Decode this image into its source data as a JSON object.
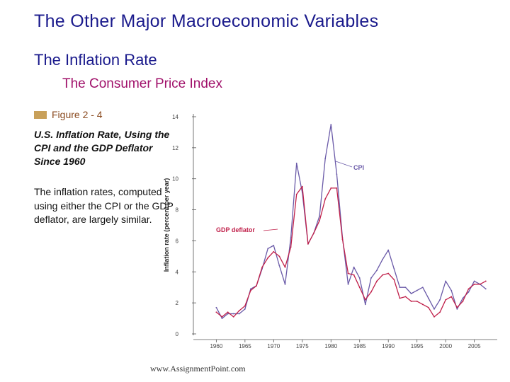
{
  "slide": {
    "title": "The Other Major Macroeconomic Variables",
    "subtitle": "The Inflation Rate",
    "subsubtitle": "The Consumer Price Index",
    "figure_label": "Figure 2 - 4",
    "caption": "U.S. Inflation Rate, Using the CPI and the GDP Deflator Since 1960",
    "description": "The inflation rates, computed using either the CPI or the GDP deflator, are largely similar.",
    "footer": "www.AssignmentPoint.com"
  },
  "colors": {
    "title": "#1a1a8c",
    "subsubtitle": "#a0106a",
    "cpi": "#6a5aa8",
    "gdp_deflator": "#c0204a",
    "figure_swatch": "#c8a05a"
  },
  "chart_data": {
    "type": "line",
    "xlabel": "",
    "ylabel": "Inflation rate (percent per year)",
    "xlim": [
      1956,
      2009
    ],
    "ylim": [
      0,
      14
    ],
    "x_ticks": [
      "1960",
      "1965",
      "1970",
      "1975",
      "1980",
      "1985",
      "1990",
      "1995",
      "2000",
      "2005"
    ],
    "y_ticks": [
      "0",
      "2",
      "4",
      "6",
      "8",
      "10",
      "12",
      "14"
    ],
    "grid": false,
    "x": [
      1960,
      1961,
      1962,
      1963,
      1964,
      1965,
      1966,
      1967,
      1968,
      1969,
      1970,
      1971,
      1972,
      1973,
      1974,
      1975,
      1976,
      1977,
      1978,
      1979,
      1980,
      1981,
      1982,
      1983,
      1984,
      1985,
      1986,
      1987,
      1988,
      1989,
      1990,
      1991,
      1992,
      1993,
      1994,
      1995,
      1996,
      1997,
      1998,
      1999,
      2000,
      2001,
      2002,
      2003,
      2004,
      2005,
      2006,
      2007
    ],
    "series": [
      {
        "name": "CPI",
        "values": [
          1.7,
          1.0,
          1.3,
          1.3,
          1.3,
          1.6,
          2.9,
          3.1,
          4.2,
          5.5,
          5.7,
          4.4,
          3.2,
          6.2,
          11.0,
          9.1,
          5.8,
          6.5,
          7.6,
          11.3,
          13.5,
          10.3,
          6.2,
          3.2,
          4.3,
          3.6,
          1.9,
          3.6,
          4.1,
          4.8,
          5.4,
          4.2,
          3.0,
          3.0,
          2.6,
          2.8,
          3.0,
          2.3,
          1.6,
          2.2,
          3.4,
          2.8,
          1.6,
          2.3,
          2.7,
          3.4,
          3.2,
          2.9
        ]
      },
      {
        "name": "GDP deflator",
        "values": [
          1.4,
          1.1,
          1.4,
          1.1,
          1.5,
          1.8,
          2.8,
          3.1,
          4.3,
          4.9,
          5.3,
          5.0,
          4.3,
          5.6,
          9.0,
          9.5,
          5.8,
          6.5,
          7.3,
          8.7,
          9.4,
          9.4,
          6.1,
          3.9,
          3.8,
          3.0,
          2.2,
          2.7,
          3.4,
          3.8,
          3.9,
          3.5,
          2.3,
          2.4,
          2.1,
          2.1,
          1.9,
          1.7,
          1.1,
          1.4,
          2.2,
          2.4,
          1.7,
          2.1,
          2.9,
          3.2,
          3.2,
          3.4
        ]
      }
    ],
    "annotations": [
      "CPI",
      "GDP deflator"
    ]
  }
}
